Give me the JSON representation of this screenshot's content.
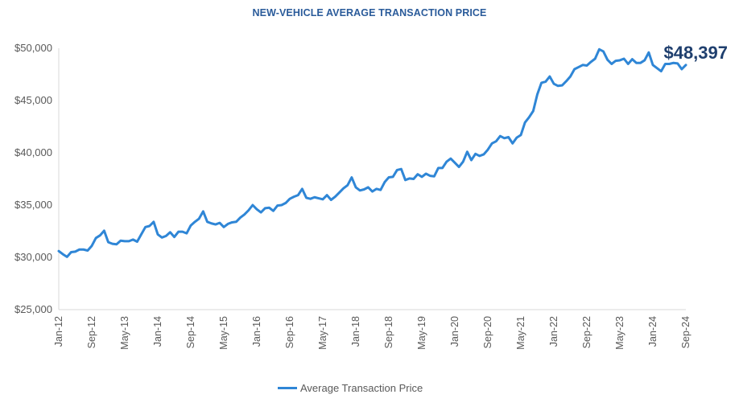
{
  "chart_data": {
    "type": "line",
    "title": "NEW-VEHICLE AVERAGE TRANSACTION PRICE",
    "xlabel": "",
    "ylabel": "",
    "ylim": [
      25000,
      50000
    ],
    "yticks": [
      25000,
      30000,
      35000,
      40000,
      45000,
      50000
    ],
    "ytick_labels": [
      "$25,000",
      "$30,000",
      "$35,000",
      "$40,000",
      "$45,000",
      "$50,000"
    ],
    "xtick_labels": [
      "Jan-12",
      "Sep-12",
      "May-13",
      "Jan-14",
      "Sep-14",
      "May-15",
      "Jan-16",
      "Sep-16",
      "May-17",
      "Jan-18",
      "Sep-18",
      "May-19",
      "Jan-20",
      "Sep-20",
      "May-21",
      "Jan-22",
      "Sep-22",
      "May-23",
      "Jan-24",
      "Sep-24"
    ],
    "x_start": "Jan-12",
    "x_end": "Sep-24",
    "grid": false,
    "legend": "bottom",
    "series": [
      {
        "name": "Average Transaction Price",
        "color": "#2f86d6",
        "values": [
          30600,
          30300,
          30050,
          30500,
          30550,
          30750,
          30750,
          30650,
          31100,
          31850,
          32100,
          32550,
          31450,
          31300,
          31250,
          31600,
          31550,
          31550,
          31700,
          31500,
          32200,
          32900,
          33000,
          33400,
          32200,
          31900,
          32050,
          32400,
          31950,
          32450,
          32450,
          32300,
          33050,
          33400,
          33700,
          34400,
          33400,
          33250,
          33150,
          33300,
          32900,
          33200,
          33350,
          33400,
          33800,
          34100,
          34500,
          35000,
          34600,
          34300,
          34700,
          34750,
          34450,
          34950,
          35000,
          35200,
          35600,
          35800,
          35950,
          36550,
          35700,
          35600,
          35750,
          35650,
          35550,
          35950,
          35500,
          35800,
          36200,
          36600,
          36900,
          37650,
          36700,
          36400,
          36500,
          36700,
          36300,
          36550,
          36450,
          37200,
          37650,
          37700,
          38350,
          38450,
          37400,
          37550,
          37500,
          37950,
          37700,
          38000,
          37800,
          37750,
          38550,
          38550,
          39150,
          39450,
          39050,
          38650,
          39150,
          40100,
          39300,
          39900,
          39700,
          39850,
          40300,
          40900,
          41100,
          41600,
          41400,
          41500,
          40900,
          41450,
          41700,
          42900,
          43400,
          44000,
          45600,
          46700,
          46800,
          47300,
          46600,
          46400,
          46450,
          46850,
          47300,
          48000,
          48200,
          48400,
          48350,
          48700,
          49000,
          49900,
          49700,
          48900,
          48500,
          48800,
          48850,
          49000,
          48500,
          48950,
          48600,
          48600,
          48850,
          49600,
          48400,
          48100,
          47800,
          48500,
          48500,
          48600,
          48550,
          48000,
          48397
        ]
      }
    ],
    "annotations": [
      {
        "text": "$48,397",
        "x": "Sep-24",
        "y": 48397
      }
    ]
  },
  "legend": {
    "label": "Average Transaction Price"
  }
}
